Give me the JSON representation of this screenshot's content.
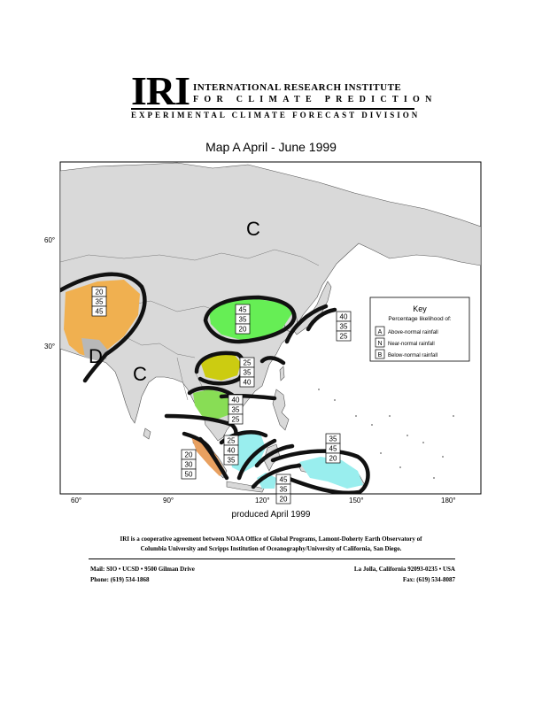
{
  "header": {
    "logo": "IRI",
    "line1": "INTERNATIONAL RESEARCH INSTITUTE",
    "line2": "FOR CLIMATE PREDICTION",
    "line3": "EXPERIMENTAL CLIMATE FORECAST DIVISION"
  },
  "map": {
    "title": "Map A   April - June 1999",
    "lat_labels": [
      "60°",
      "30°"
    ],
    "lon_labels": [
      "60°",
      "90°",
      "120°",
      "150°",
      "180°"
    ],
    "region_letters": [
      "C",
      "C",
      "D"
    ],
    "forecast_boxes": [
      {
        "values": [
          "20",
          "35",
          "45"
        ],
        "color": "#f0b050"
      },
      {
        "values": [
          "45",
          "35",
          "20"
        ],
        "color": "#66ee55"
      },
      {
        "values": [
          "40",
          "35",
          "25"
        ],
        "color": "#ffffff"
      },
      {
        "values": [
          "25",
          "35",
          "40"
        ],
        "color": "#cccc11"
      },
      {
        "values": [
          "40",
          "35",
          "25"
        ],
        "color": "#88dd55"
      },
      {
        "values": [
          "25",
          "40",
          "35"
        ],
        "color": "#99eeee"
      },
      {
        "values": [
          "20",
          "30",
          "50"
        ],
        "color": "#e8a060"
      },
      {
        "values": [
          "35",
          "45",
          "20"
        ],
        "color": "#99eeee"
      },
      {
        "values": [
          "45",
          "35",
          "20"
        ],
        "color": "#99eeee"
      }
    ],
    "key": {
      "title": "Key",
      "subtitle": "Percentage likelihood of:",
      "items": [
        {
          "letter": "A",
          "label": "Above-normal rainfall"
        },
        {
          "letter": "N",
          "label": "Near-normal rainfall"
        },
        {
          "letter": "B",
          "label": "Below-normal rainfall"
        }
      ]
    },
    "produced": "produced April 1999"
  },
  "footer": {
    "coop_line1": "IRI is a cooperative agreement between NOAA Office of Global Programs, Lamont-Doherty Earth Observatory of",
    "coop_line2": "Columbia University and Scripps Institution of Oceanography/University of California, San Diego.",
    "mail": "Mail: SIO • UCSD • 9500 Gilman Drive",
    "city": "La Jolla, California 92093-0235 • USA",
    "phone": "Phone: (619) 534-1868",
    "fax": "Fax: (619) 534-8087"
  }
}
